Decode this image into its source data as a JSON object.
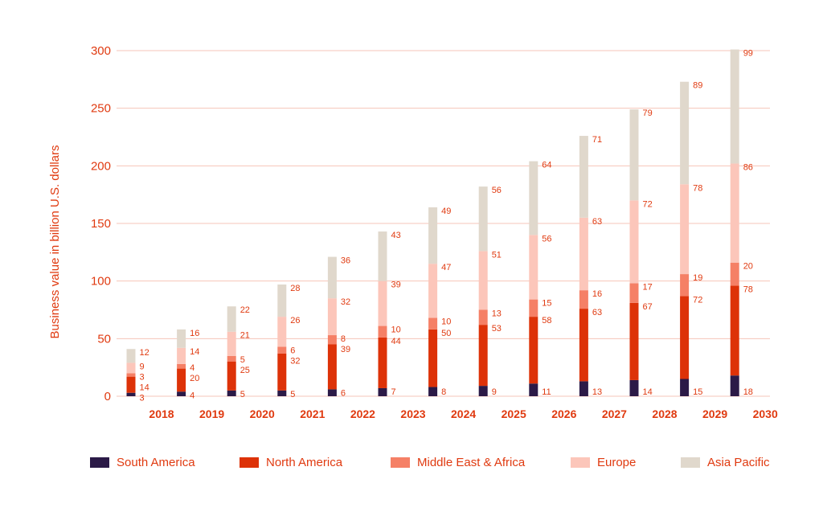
{
  "chart_data": {
    "type": "bar",
    "stacked": true,
    "xlabel": "",
    "ylabel": "Business value in billion U.S. dollars",
    "ylim": [
      0,
      300
    ],
    "yticks": [
      0,
      50,
      100,
      150,
      200,
      250,
      300
    ],
    "grid": true,
    "legend_position": "bottom",
    "categories": [
      "2018",
      "2019",
      "2020",
      "2021",
      "2022",
      "2023",
      "2024",
      "2025",
      "2026",
      "2027",
      "2028",
      "2029",
      "2030"
    ],
    "series": [
      {
        "name": "South America",
        "color": "#2b1a47",
        "values": [
          3,
          4,
          5,
          5,
          6,
          7,
          8,
          9,
          11,
          13,
          14,
          15,
          18
        ]
      },
      {
        "name": "North America",
        "color": "#dd3208",
        "values": [
          14,
          20,
          25,
          32,
          39,
          44,
          50,
          53,
          58,
          63,
          67,
          72,
          78
        ]
      },
      {
        "name": "Middle East & Africa",
        "color": "#f58066",
        "values": [
          3,
          4,
          5,
          6,
          8,
          10,
          10,
          13,
          15,
          16,
          17,
          19,
          20
        ]
      },
      {
        "name": "Europe",
        "color": "#fcc6ba",
        "values": [
          9,
          14,
          21,
          26,
          32,
          39,
          47,
          51,
          56,
          63,
          72,
          78,
          86
        ]
      },
      {
        "name": "Asia Pacific",
        "color": "#e0d8cc",
        "values": [
          12,
          16,
          22,
          28,
          36,
          43,
          49,
          56,
          64,
          71,
          79,
          89,
          99
        ]
      }
    ]
  },
  "styles": {
    "accent_color": "#e03a10",
    "grid_color": "#f6c4b8"
  }
}
